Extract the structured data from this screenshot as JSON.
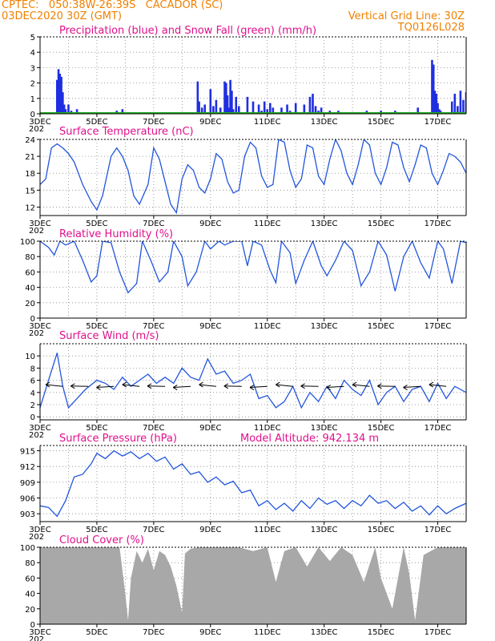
{
  "header": {
    "line1": "CPTEC:   050:38W-26:39S   CACADOR (SC)",
    "line2_left": "03DEC2020 30Z (GMT)",
    "line2_right": "Vertical Grid Line: 30Z",
    "line3_right": "TQ0126L028"
  },
  "colors": {
    "header": "#f08000",
    "title": "#e0108c",
    "precip": "#1f2fe0",
    "snow": "#22aa22",
    "line": "#2255dd",
    "cloud": "#a8a8a8"
  },
  "x_axis": {
    "ticks": [
      "3DEC",
      "5DEC",
      "7DEC",
      "9DEC",
      "11DEC",
      "13DEC",
      "15DEC",
      "17DEC"
    ],
    "year_stub": "202"
  },
  "chart_data": [
    {
      "type": "bar",
      "title": "Precipitation (blue) and Snow Fall (green) (mm/h)",
      "ylim": [
        0,
        5
      ],
      "yticks": [
        "0",
        "1",
        "2",
        "3",
        "4",
        "5"
      ],
      "series": [
        {
          "name": "Precipitation",
          "x_days": [
            3.6,
            3.65,
            3.7,
            3.75,
            3.8,
            3.85,
            3.9,
            4.0,
            4.1,
            4.3,
            5.7,
            5.9,
            8.55,
            8.6,
            8.7,
            8.8,
            9.0,
            9.1,
            9.2,
            9.35,
            9.5,
            9.55,
            9.6,
            9.65,
            9.7,
            9.75,
            9.8,
            9.9,
            10.0,
            10.3,
            10.5,
            10.7,
            10.8,
            10.9,
            11.0,
            11.1,
            11.2,
            11.5,
            11.7,
            11.8,
            12.0,
            12.3,
            12.5,
            12.6,
            12.7,
            12.8,
            12.9,
            13.2,
            13.5,
            14.5,
            15.0,
            15.5,
            16.3,
            16.8,
            16.85,
            16.9,
            16.95,
            17.0,
            17.05,
            17.1,
            17.5,
            17.6,
            17.7,
            17.8,
            17.9,
            18.0
          ],
          "values": [
            2.2,
            2.9,
            2.6,
            2.4,
            1.4,
            0.6,
            0.3,
            0.6,
            0.2,
            0.3,
            0.2,
            0.3,
            2.1,
            0.8,
            0.4,
            0.6,
            1.6,
            0.5,
            0.9,
            0.4,
            2.1,
            2.0,
            1.2,
            0.4,
            2.2,
            1.5,
            0.3,
            1.1,
            0.5,
            1.1,
            0.8,
            0.6,
            0.2,
            0.8,
            0.3,
            0.7,
            0.4,
            0.4,
            0.6,
            0.2,
            0.7,
            0.6,
            1.1,
            1.3,
            0.5,
            0.2,
            0.4,
            0.2,
            0.2,
            0.2,
            0.2,
            0.2,
            0.4,
            3.5,
            3.2,
            1.5,
            1.3,
            0.7,
            0.3,
            0.2,
            0.8,
            1.3,
            0.5,
            1.5,
            0.9,
            1.4
          ]
        },
        {
          "name": "Snow Fall",
          "values": [
            0
          ]
        }
      ]
    },
    {
      "type": "line",
      "title": "Surface Temperature (nC)",
      "ylim": [
        10.5,
        24
      ],
      "yticks": [
        "12",
        "15",
        "18",
        "21",
        "24"
      ],
      "x_days": [
        3.0,
        3.2,
        3.4,
        3.6,
        3.8,
        4.0,
        4.2,
        4.5,
        4.8,
        5.0,
        5.2,
        5.5,
        5.7,
        5.9,
        6.1,
        6.3,
        6.5,
        6.8,
        7.0,
        7.2,
        7.4,
        7.6,
        7.8,
        8.0,
        8.2,
        8.4,
        8.6,
        8.8,
        9.0,
        9.2,
        9.4,
        9.6,
        9.8,
        10.0,
        10.2,
        10.4,
        10.6,
        10.8,
        11.0,
        11.2,
        11.4,
        11.6,
        11.8,
        12.0,
        12.2,
        12.4,
        12.6,
        12.8,
        13.0,
        13.2,
        13.4,
        13.6,
        13.8,
        14.0,
        14.2,
        14.4,
        14.6,
        14.8,
        15.0,
        15.2,
        15.4,
        15.6,
        15.8,
        16.0,
        16.2,
        16.4,
        16.6,
        16.8,
        17.0,
        17.2,
        17.4,
        17.6,
        17.8,
        18.0
      ],
      "values": [
        16.0,
        17.0,
        22.5,
        23.2,
        22.5,
        21.5,
        20.0,
        16.0,
        13.0,
        11.5,
        14.0,
        21.0,
        22.5,
        21.0,
        18.5,
        14.0,
        12.5,
        16.0,
        22.5,
        20.5,
        16.5,
        12.5,
        11.0,
        17.0,
        19.5,
        18.5,
        15.5,
        14.5,
        17.0,
        21.5,
        20.5,
        16.5,
        14.5,
        15.0,
        21.0,
        23.5,
        22.5,
        17.5,
        15.5,
        16.0,
        24.0,
        23.5,
        18.5,
        15.5,
        17.0,
        23.0,
        22.5,
        17.5,
        16.0,
        20.5,
        24.0,
        22.0,
        18.0,
        16.0,
        19.5,
        24.0,
        23.0,
        18.0,
        16.0,
        19.0,
        23.5,
        23.0,
        19.0,
        16.5,
        19.5,
        23.0,
        22.5,
        18.0,
        16.0,
        18.5,
        21.5,
        21.0,
        20.0,
        18.0
      ]
    },
    {
      "type": "line",
      "title": "Relative Humidity (%)",
      "ylim": [
        0,
        100
      ],
      "yticks": [
        "0",
        "20",
        "40",
        "60",
        "80",
        "100"
      ],
      "x_days": [
        3.0,
        3.3,
        3.5,
        3.7,
        3.9,
        4.2,
        4.5,
        4.8,
        5.0,
        5.2,
        5.5,
        5.8,
        6.1,
        6.4,
        6.6,
        6.9,
        7.2,
        7.5,
        7.7,
        8.0,
        8.2,
        8.5,
        8.8,
        9.0,
        9.3,
        9.5,
        9.8,
        10.1,
        10.3,
        10.5,
        10.8,
        11.1,
        11.3,
        11.5,
        11.8,
        12.0,
        12.3,
        12.6,
        12.9,
        13.1,
        13.4,
        13.7,
        14.0,
        14.3,
        14.6,
        14.9,
        15.2,
        15.5,
        15.8,
        16.1,
        16.4,
        16.7,
        17.0,
        17.2,
        17.5,
        17.8,
        18.0
      ],
      "values": [
        100,
        92,
        82,
        100,
        95,
        100,
        75,
        47,
        55,
        100,
        98,
        60,
        33,
        45,
        100,
        75,
        47,
        60,
        100,
        80,
        42,
        60,
        100,
        90,
        100,
        95,
        100,
        100,
        68,
        100,
        95,
        62,
        46,
        100,
        85,
        45,
        75,
        100,
        68,
        55,
        75,
        100,
        88,
        42,
        60,
        100,
        82,
        35,
        80,
        100,
        72,
        52,
        100,
        90,
        45,
        100,
        98
      ]
    },
    {
      "type": "line",
      "title": "Surface Wind (m/s)",
      "ylim": [
        -0.5,
        12
      ],
      "yticks": [
        "0",
        "2",
        "4",
        "6",
        "8",
        "10"
      ],
      "x_days": [
        3.0,
        3.3,
        3.6,
        3.8,
        4.0,
        4.3,
        4.6,
        5.0,
        5.3,
        5.6,
        5.9,
        6.2,
        6.5,
        6.8,
        7.1,
        7.4,
        7.7,
        8.0,
        8.3,
        8.6,
        8.9,
        9.2,
        9.5,
        9.8,
        10.1,
        10.4,
        10.7,
        11.0,
        11.3,
        11.6,
        11.9,
        12.2,
        12.5,
        12.8,
        13.1,
        13.4,
        13.7,
        14.0,
        14.3,
        14.6,
        14.9,
        15.2,
        15.5,
        15.8,
        16.1,
        16.4,
        16.7,
        17.0,
        17.3,
        17.6,
        18.0
      ],
      "values": [
        1.5,
        6.0,
        10.5,
        5.0,
        1.5,
        3.0,
        4.5,
        6.0,
        5.5,
        4.5,
        6.5,
        5.0,
        6.0,
        7.0,
        5.5,
        6.5,
        5.5,
        8.0,
        6.5,
        6.0,
        9.5,
        7.0,
        7.5,
        5.5,
        6.0,
        7.0,
        3.0,
        3.5,
        1.5,
        2.5,
        5.0,
        1.5,
        4.0,
        2.5,
        5.0,
        3.0,
        6.0,
        4.5,
        3.5,
        6.0,
        2.0,
        4.0,
        5.0,
        2.5,
        4.5,
        5.0,
        2.5,
        5.5,
        3.0,
        5.0,
        4.0
      ]
    },
    {
      "type": "line",
      "title": "Surface Pressure (hPa)",
      "annotation": "Model Altitude: 942.134 m",
      "ylim": [
        901.5,
        916
      ],
      "yticks": [
        "903",
        "906",
        "909",
        "912",
        "915"
      ],
      "x_days": [
        3.0,
        3.3,
        3.6,
        3.9,
        4.2,
        4.5,
        4.8,
        5.0,
        5.3,
        5.6,
        5.9,
        6.2,
        6.5,
        6.8,
        7.1,
        7.4,
        7.7,
        8.0,
        8.3,
        8.6,
        8.9,
        9.2,
        9.5,
        9.8,
        10.1,
        10.4,
        10.7,
        11.0,
        11.3,
        11.6,
        11.9,
        12.2,
        12.5,
        12.8,
        13.1,
        13.4,
        13.7,
        14.0,
        14.3,
        14.6,
        14.9,
        15.2,
        15.5,
        15.8,
        16.1,
        16.4,
        16.7,
        17.0,
        17.3,
        17.6,
        18.0
      ],
      "values": [
        904.5,
        904.2,
        902.5,
        905.5,
        910.0,
        910.5,
        912.5,
        914.5,
        913.5,
        915.0,
        914.0,
        914.8,
        913.5,
        914.5,
        913.0,
        913.8,
        911.5,
        912.5,
        910.5,
        911.0,
        909.0,
        910.0,
        908.5,
        909.2,
        907.0,
        907.5,
        904.5,
        905.5,
        903.8,
        905.0,
        903.5,
        905.5,
        904.0,
        906.0,
        904.8,
        905.5,
        904.0,
        905.5,
        904.5,
        906.5,
        905.0,
        905.5,
        904.0,
        905.2,
        903.5,
        904.5,
        902.8,
        904.5,
        903.0,
        904.0,
        905.0
      ]
    },
    {
      "type": "area",
      "title": "Cloud Cover (%)",
      "ylim": [
        0,
        100
      ],
      "yticks": [
        "0",
        "20",
        "40",
        "60",
        "80",
        "100"
      ],
      "x_days": [
        3.0,
        4.0,
        5.0,
        5.8,
        6.0,
        6.1,
        6.2,
        6.4,
        6.6,
        6.8,
        7.0,
        7.2,
        7.4,
        7.6,
        7.8,
        8.0,
        8.1,
        8.3,
        8.6,
        9.0,
        9.5,
        10.0,
        10.5,
        11.0,
        11.3,
        11.6,
        12.0,
        12.4,
        12.8,
        13.2,
        13.6,
        14.0,
        14.4,
        14.8,
        15.0,
        15.4,
        15.8,
        16.0,
        16.2,
        16.5,
        17.0,
        17.5,
        18.0
      ],
      "values": [
        100,
        100,
        100,
        100,
        40,
        5,
        60,
        95,
        80,
        98,
        70,
        95,
        90,
        75,
        50,
        15,
        92,
        98,
        100,
        100,
        100,
        100,
        95,
        100,
        55,
        95,
        100,
        75,
        100,
        82,
        100,
        90,
        55,
        100,
        60,
        20,
        100,
        65,
        5,
        90,
        100,
        100,
        100
      ]
    }
  ]
}
